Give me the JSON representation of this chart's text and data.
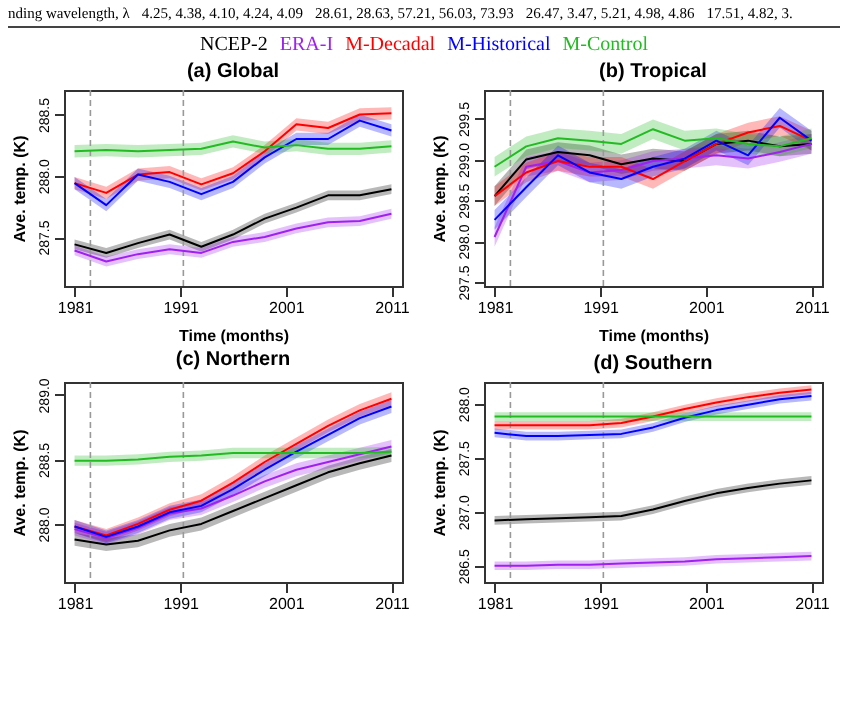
{
  "chart_data": [
    {
      "type": "other",
      "annotations": [
        "nding wavelength, λ",
        "4.25, 4.38, 4.10, 4.24, 4.09",
        "28.61, 28.63, 57.21, 56.03, 73.93",
        "26.47, 3.47, 5.21, 4.98, 4.86",
        "17.51, 4.82, 3."
      ]
    },
    {
      "type": "line",
      "title": "(a) Global",
      "xlabel": "Time (months)",
      "ylabel": "Ave. temp. (K)",
      "legend": "top",
      "xlim": [
        1980,
        2012
      ],
      "xticks": [
        1981,
        1991,
        2001,
        2011
      ],
      "ylim": [
        287.1,
        288.7
      ],
      "yticks": [
        287.5,
        {
          "value": 288,
          "label": "288.0"
        },
        288.5
      ],
      "x": [
        1981,
        1984,
        1987,
        1990,
        1993,
        1996,
        1999,
        2002,
        2005,
        2008,
        2011
      ],
      "ref_lines": [
        {
          "axis": "x",
          "value": 1982.5,
          "color": "#999999",
          "line_style": "dashed"
        },
        {
          "axis": "x",
          "value": 1991.3,
          "color": "#999999",
          "line_style": "dashed"
        }
      ],
      "series": [
        {
          "name": "NCEP-2",
          "color": "#000000",
          "values": [
            287.44,
            287.37,
            287.45,
            287.52,
            287.42,
            287.52,
            287.65,
            287.74,
            287.84,
            287.84,
            287.89
          ],
          "lower": [
            287.4,
            287.33,
            287.41,
            287.48,
            287.38,
            287.48,
            287.61,
            287.7,
            287.8,
            287.8,
            287.85
          ],
          "upper": [
            287.48,
            287.41,
            287.49,
            287.56,
            287.46,
            287.56,
            287.69,
            287.78,
            287.88,
            287.88,
            287.93
          ]
        },
        {
          "name": "ERA-I",
          "color": "#a020f0",
          "values": [
            287.39,
            287.3,
            287.36,
            287.4,
            287.37,
            287.46,
            287.5,
            287.57,
            287.62,
            287.63,
            287.69
          ],
          "lower": [
            287.35,
            287.26,
            287.32,
            287.36,
            287.33,
            287.42,
            287.46,
            287.53,
            287.58,
            287.59,
            287.65
          ],
          "upper": [
            287.43,
            287.34,
            287.4,
            287.44,
            287.41,
            287.5,
            287.54,
            287.61,
            287.66,
            287.67,
            287.73
          ]
        },
        {
          "name": "M-Decadal",
          "color": "#ff0000",
          "values": [
            287.94,
            287.86,
            288.01,
            288.03,
            287.93,
            288.02,
            288.2,
            288.42,
            288.39,
            288.5,
            288.51
          ],
          "lower": [
            287.89,
            287.81,
            287.96,
            287.98,
            287.88,
            287.97,
            288.15,
            288.37,
            288.34,
            288.45,
            288.46
          ],
          "upper": [
            287.99,
            287.91,
            288.06,
            288.08,
            287.98,
            288.07,
            288.25,
            288.47,
            288.44,
            288.55,
            288.56
          ]
        },
        {
          "name": "M-Historical",
          "color": "#0000ff",
          "values": [
            287.94,
            287.76,
            288.01,
            287.95,
            287.85,
            287.95,
            288.15,
            288.3,
            288.3,
            288.45,
            288.37
          ],
          "lower": [
            287.89,
            287.71,
            287.96,
            287.9,
            287.8,
            287.9,
            288.1,
            288.25,
            288.25,
            288.4,
            288.32
          ],
          "upper": [
            287.99,
            287.81,
            288.06,
            288.0,
            287.9,
            288.0,
            288.2,
            288.35,
            288.35,
            288.5,
            288.42
          ]
        },
        {
          "name": "M-Control",
          "color": "#22bb22",
          "values": [
            288.2,
            288.21,
            288.2,
            288.21,
            288.22,
            288.28,
            288.23,
            288.25,
            288.22,
            288.22,
            288.24
          ],
          "lower": [
            288.15,
            288.16,
            288.15,
            288.16,
            288.17,
            288.23,
            288.18,
            288.2,
            288.17,
            288.17,
            288.19
          ],
          "upper": [
            288.25,
            288.26,
            288.25,
            288.26,
            288.27,
            288.33,
            288.28,
            288.3,
            288.27,
            288.27,
            288.29
          ]
        }
      ]
    },
    {
      "type": "line",
      "title": "(b) Tropical",
      "xlabel": "Time (months)",
      "ylabel": "Ave. temp. (K)",
      "xlim": [
        1980,
        2012
      ],
      "xticks": [
        1981,
        1991,
        2001,
        2011
      ],
      "ylim": [
        297.45,
        299.85
      ],
      "yticks": [
        297.5,
        {
          "value": 298,
          "label": "298.0"
        },
        298.5,
        {
          "value": 299,
          "label": "299.0"
        },
        299.5
      ],
      "x": [
        1981,
        1984,
        1987,
        1990,
        1993,
        1996,
        1999,
        2002,
        2005,
        2008,
        2011
      ],
      "ref_lines": [
        {
          "axis": "x",
          "value": 1982.5,
          "color": "#999999",
          "line_style": "dashed"
        },
        {
          "axis": "x",
          "value": 1991.3,
          "color": "#999999",
          "line_style": "dashed"
        }
      ],
      "series": [
        {
          "color": "#000000",
          "values": [
            298.55,
            299.0,
            299.09,
            299.05,
            298.94,
            299.01,
            298.98,
            299.19,
            299.23,
            299.16,
            299.19
          ],
          "lower": [
            298.43,
            298.88,
            298.97,
            298.93,
            298.82,
            298.89,
            298.86,
            299.07,
            299.11,
            299.04,
            299.07
          ],
          "upper": [
            298.67,
            299.12,
            299.21,
            299.17,
            299.06,
            299.13,
            299.1,
            299.31,
            299.35,
            299.28,
            299.31
          ]
        },
        {
          "color": "#a020f0",
          "values": [
            298.05,
            298.91,
            298.98,
            298.84,
            298.87,
            298.98,
            299.01,
            299.05,
            299.01,
            299.09,
            299.19
          ],
          "lower": [
            297.93,
            298.79,
            298.86,
            298.72,
            298.75,
            298.86,
            298.89,
            298.93,
            298.89,
            298.97,
            299.07
          ],
          "upper": [
            298.17,
            299.03,
            299.1,
            298.96,
            298.99,
            299.1,
            299.13,
            299.17,
            299.13,
            299.21,
            299.31
          ]
        },
        {
          "color": "#ff0000",
          "values": [
            298.55,
            298.84,
            298.98,
            298.91,
            298.91,
            298.76,
            298.98,
            299.19,
            299.33,
            299.41,
            299.23
          ],
          "lower": [
            298.43,
            298.72,
            298.86,
            298.79,
            298.79,
            298.64,
            298.86,
            299.07,
            299.21,
            299.29,
            299.11
          ],
          "upper": [
            298.67,
            298.96,
            299.1,
            299.03,
            299.03,
            298.88,
            299.1,
            299.31,
            299.45,
            299.53,
            299.35
          ]
        },
        {
          "color": "#0000ff",
          "values": [
            298.26,
            298.66,
            299.05,
            298.84,
            298.76,
            298.91,
            299.01,
            299.23,
            299.05,
            299.51,
            299.23
          ],
          "lower": [
            298.14,
            298.54,
            298.93,
            298.72,
            298.64,
            298.79,
            298.89,
            299.11,
            298.93,
            299.39,
            299.11
          ],
          "upper": [
            298.38,
            298.78,
            299.17,
            298.96,
            298.88,
            299.03,
            299.13,
            299.35,
            299.17,
            299.63,
            299.35
          ]
        },
        {
          "color": "#22bb22",
          "values": [
            298.91,
            299.16,
            299.26,
            299.23,
            299.19,
            299.37,
            299.23,
            299.26,
            299.19,
            299.16,
            299.26
          ],
          "lower": [
            298.79,
            299.04,
            299.14,
            299.11,
            299.07,
            299.25,
            299.11,
            299.14,
            299.07,
            299.04,
            299.14
          ],
          "upper": [
            299.03,
            299.28,
            299.38,
            299.35,
            299.31,
            299.49,
            299.35,
            299.38,
            299.31,
            299.28,
            299.38
          ]
        }
      ]
    },
    {
      "type": "line",
      "title": "(c) Northern",
      "ylabel": "Ave. temp. (K)",
      "xlim": [
        1980,
        2012
      ],
      "xticks": [
        1981,
        1991,
        2001,
        2011
      ],
      "ylim": [
        287.55,
        289.1
      ],
      "yticks": [
        {
          "value": 288,
          "label": "288.0"
        },
        288.5,
        {
          "value": 289,
          "label": "289.0"
        }
      ],
      "x": [
        1981,
        1984,
        1987,
        1990,
        1993,
        1996,
        1999,
        2002,
        2005,
        2008,
        2011
      ],
      "ref_lines": [
        {
          "axis": "x",
          "value": 1982.5,
          "color": "#999999",
          "line_style": "dashed"
        },
        {
          "axis": "x",
          "value": 1991.3,
          "color": "#999999",
          "line_style": "dashed"
        }
      ],
      "series": [
        {
          "color": "#000000",
          "values": [
            287.88,
            287.84,
            287.87,
            287.95,
            288.0,
            288.1,
            288.2,
            288.3,
            288.4,
            288.47,
            288.53
          ],
          "lower": [
            287.83,
            287.79,
            287.82,
            287.9,
            287.95,
            288.05,
            288.15,
            288.25,
            288.35,
            288.42,
            288.48
          ],
          "upper": [
            287.93,
            287.89,
            287.92,
            288.0,
            288.05,
            288.15,
            288.25,
            288.35,
            288.45,
            288.52,
            288.58
          ]
        },
        {
          "color": "#a020f0",
          "values": [
            287.96,
            287.89,
            287.97,
            288.08,
            288.12,
            288.22,
            288.33,
            288.42,
            288.48,
            288.54,
            288.6
          ],
          "lower": [
            287.91,
            287.84,
            287.92,
            288.03,
            288.07,
            288.17,
            288.28,
            288.37,
            288.43,
            288.49,
            288.55
          ],
          "upper": [
            288.01,
            287.94,
            288.02,
            288.13,
            288.17,
            288.27,
            288.38,
            288.47,
            288.53,
            288.59,
            288.65
          ]
        },
        {
          "color": "#ff0000",
          "values": [
            287.98,
            287.91,
            288.0,
            288.11,
            288.18,
            288.32,
            288.48,
            288.62,
            288.76,
            288.88,
            288.97
          ],
          "lower": [
            287.93,
            287.86,
            287.95,
            288.06,
            288.13,
            288.27,
            288.43,
            288.57,
            288.71,
            288.83,
            288.92
          ],
          "upper": [
            288.03,
            287.96,
            288.05,
            288.16,
            288.23,
            288.37,
            288.53,
            288.67,
            288.81,
            288.93,
            289.02
          ]
        },
        {
          "color": "#0000ff",
          "values": [
            287.98,
            287.9,
            287.98,
            288.09,
            288.14,
            288.27,
            288.42,
            288.56,
            288.69,
            288.82,
            288.91
          ],
          "lower": [
            287.93,
            287.85,
            287.93,
            288.04,
            288.09,
            288.22,
            288.37,
            288.51,
            288.64,
            288.77,
            288.86
          ],
          "upper": [
            288.03,
            287.95,
            288.03,
            288.14,
            288.19,
            288.32,
            288.47,
            288.61,
            288.74,
            288.87,
            288.96
          ]
        },
        {
          "color": "#22bb22",
          "values": [
            288.49,
            288.49,
            288.5,
            288.52,
            288.53,
            288.55,
            288.55,
            288.55,
            288.55,
            288.55,
            288.56
          ],
          "lower": [
            288.45,
            288.45,
            288.46,
            288.48,
            288.49,
            288.51,
            288.51,
            288.51,
            288.51,
            288.51,
            288.52
          ],
          "upper": [
            288.53,
            288.53,
            288.54,
            288.56,
            288.57,
            288.59,
            288.59,
            288.59,
            288.59,
            288.59,
            288.6
          ]
        }
      ]
    },
    {
      "type": "line",
      "title": "(d) Southern",
      "ylabel": "Ave. temp. (K)",
      "xlim": [
        1980,
        2012
      ],
      "xticks": [
        1981,
        1991,
        2001,
        2011
      ],
      "ylim": [
        286.35,
        288.2
      ],
      "yticks": [
        286.5,
        {
          "value": 287,
          "label": "287.0"
        },
        287.5,
        {
          "value": 288,
          "label": "288.0"
        }
      ],
      "x": [
        1981,
        1984,
        1987,
        1990,
        1993,
        1996,
        1999,
        2002,
        2005,
        2008,
        2011
      ],
      "ref_lines": [
        {
          "axis": "x",
          "value": 1982.5,
          "color": "#999999",
          "line_style": "dashed"
        },
        {
          "axis": "x",
          "value": 1991.3,
          "color": "#999999",
          "line_style": "dashed"
        }
      ],
      "series": [
        {
          "color": "#000000",
          "values": [
            286.92,
            286.93,
            286.94,
            286.95,
            286.96,
            287.02,
            287.1,
            287.17,
            287.22,
            287.26,
            287.29
          ],
          "lower": [
            286.88,
            286.89,
            286.9,
            286.91,
            286.92,
            286.98,
            287.06,
            287.13,
            287.18,
            287.22,
            287.25
          ],
          "upper": [
            286.96,
            286.97,
            286.98,
            286.99,
            287.0,
            287.06,
            287.14,
            287.21,
            287.26,
            287.3,
            287.33
          ]
        },
        {
          "color": "#a020f0",
          "values": [
            286.5,
            286.5,
            286.51,
            286.51,
            286.52,
            286.53,
            286.54,
            286.56,
            286.57,
            286.58,
            286.59
          ],
          "lower": [
            286.46,
            286.46,
            286.47,
            286.47,
            286.48,
            286.49,
            286.5,
            286.52,
            286.53,
            286.54,
            286.55
          ],
          "upper": [
            286.54,
            286.54,
            286.55,
            286.55,
            286.56,
            286.57,
            286.58,
            286.6,
            286.61,
            286.62,
            286.63
          ]
        },
        {
          "color": "#ff0000",
          "values": [
            287.8,
            287.8,
            287.8,
            287.8,
            287.82,
            287.88,
            287.95,
            288.01,
            288.06,
            288.1,
            288.13
          ],
          "lower": [
            287.76,
            287.76,
            287.76,
            287.76,
            287.78,
            287.84,
            287.91,
            287.97,
            288.02,
            288.06,
            288.09
          ],
          "upper": [
            287.84,
            287.84,
            287.84,
            287.84,
            287.86,
            287.92,
            287.99,
            288.05,
            288.1,
            288.14,
            288.17
          ]
        },
        {
          "color": "#0000ff",
          "values": [
            287.73,
            287.7,
            287.7,
            287.71,
            287.72,
            287.78,
            287.87,
            287.94,
            287.99,
            288.04,
            288.07
          ],
          "lower": [
            287.69,
            287.66,
            287.66,
            287.67,
            287.68,
            287.74,
            287.83,
            287.9,
            287.95,
            288.0,
            288.03
          ],
          "upper": [
            287.77,
            287.74,
            287.74,
            287.75,
            287.76,
            287.82,
            287.91,
            287.98,
            288.03,
            288.08,
            288.11
          ]
        },
        {
          "color": "#22bb22",
          "values": [
            287.88,
            287.88,
            287.88,
            287.88,
            287.88,
            287.88,
            287.88,
            287.88,
            287.88,
            287.88,
            287.88
          ],
          "lower": [
            287.84,
            287.84,
            287.84,
            287.84,
            287.84,
            287.84,
            287.84,
            287.84,
            287.84,
            287.84,
            287.84
          ],
          "upper": [
            287.92,
            287.92,
            287.92,
            287.92,
            287.92,
            287.92,
            287.92,
            287.92,
            287.92,
            287.92,
            287.92
          ]
        }
      ]
    }
  ]
}
